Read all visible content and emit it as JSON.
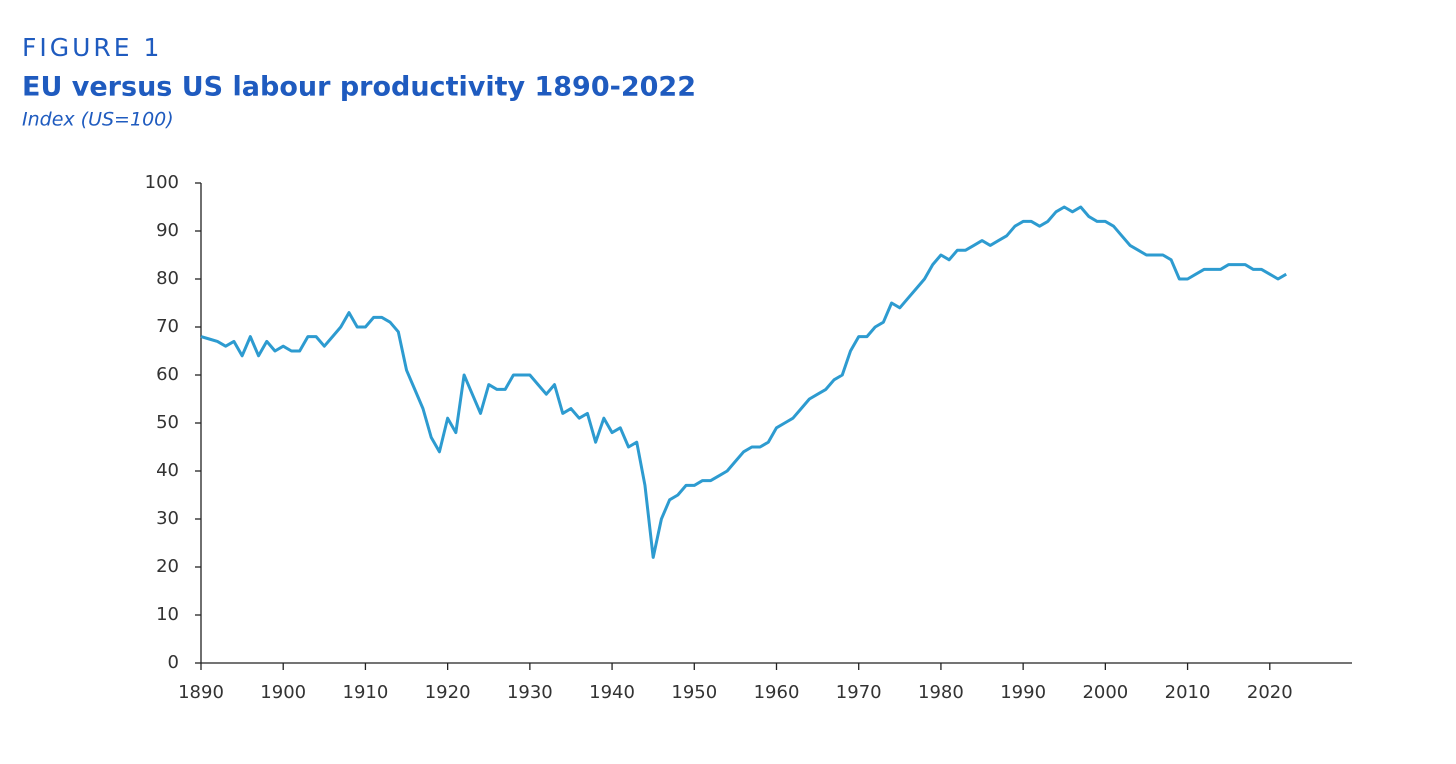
{
  "chart_data": {
    "type": "line",
    "label": "FIGURE 1",
    "title": "EU versus US labour productivity 1890-2022",
    "subtitle": "Index (US=100)",
    "color": "#2d9bd0",
    "x": [
      1890,
      1891,
      1892,
      1893,
      1894,
      1895,
      1896,
      1897,
      1898,
      1899,
      1900,
      1901,
      1902,
      1903,
      1904,
      1905,
      1906,
      1907,
      1908,
      1909,
      1910,
      1911,
      1912,
      1913,
      1914,
      1915,
      1916,
      1917,
      1918,
      1919,
      1920,
      1921,
      1922,
      1923,
      1924,
      1925,
      1926,
      1927,
      1928,
      1929,
      1930,
      1931,
      1932,
      1933,
      1934,
      1935,
      1936,
      1937,
      1938,
      1939,
      1940,
      1941,
      1942,
      1943,
      1944,
      1945,
      1946,
      1947,
      1948,
      1949,
      1950,
      1951,
      1952,
      1953,
      1954,
      1955,
      1956,
      1957,
      1958,
      1959,
      1960,
      1961,
      1962,
      1963,
      1964,
      1965,
      1966,
      1967,
      1968,
      1969,
      1970,
      1971,
      1972,
      1973,
      1974,
      1975,
      1976,
      1977,
      1978,
      1979,
      1980,
      1981,
      1982,
      1983,
      1984,
      1985,
      1986,
      1987,
      1988,
      1989,
      1990,
      1991,
      1992,
      1993,
      1994,
      1995,
      1996,
      1997,
      1998,
      1999,
      2000,
      2001,
      2002,
      2003,
      2004,
      2005,
      2006,
      2007,
      2008,
      2009,
      2010,
      2011,
      2012,
      2013,
      2014,
      2015,
      2016,
      2017,
      2018,
      2019,
      2020,
      2021,
      2022
    ],
    "values": [
      68,
      67.5,
      67,
      66,
      67,
      64,
      68,
      64,
      67,
      65,
      66,
      65,
      65,
      68,
      68,
      66,
      68,
      70,
      73,
      70,
      70,
      72,
      72,
      71,
      69,
      61,
      57,
      53,
      47,
      44,
      51,
      48,
      60,
      56,
      52,
      58,
      57,
      57,
      60,
      60,
      60,
      58,
      56,
      58,
      52,
      53,
      51,
      52,
      46,
      51,
      48,
      49,
      45,
      46,
      37,
      22,
      30,
      34,
      35,
      37,
      37,
      38,
      38,
      39,
      40,
      42,
      44,
      45,
      45,
      46,
      49,
      50,
      51,
      53,
      55,
      56,
      57,
      59,
      60,
      65,
      68,
      68,
      70,
      71,
      75,
      74,
      76,
      78,
      80,
      83,
      85,
      84,
      86,
      86,
      87,
      88,
      87,
      88,
      89,
      91,
      92,
      92,
      91,
      92,
      94,
      95,
      94,
      95,
      93,
      92,
      92,
      91,
      89,
      87,
      86,
      85,
      85,
      85,
      84,
      80,
      80,
      81,
      82,
      82,
      82,
      83,
      83,
      83,
      82,
      82,
      81,
      80,
      81
    ],
    "xlim": [
      1890,
      2030
    ],
    "xticks": [
      1890,
      1900,
      1910,
      1920,
      1930,
      1940,
      1950,
      1960,
      1970,
      1980,
      1990,
      2000,
      2010,
      2020
    ],
    "ylim": [
      0,
      100
    ],
    "yticks": [
      0,
      10,
      20,
      30,
      40,
      50,
      60,
      70,
      80,
      90,
      100
    ]
  }
}
